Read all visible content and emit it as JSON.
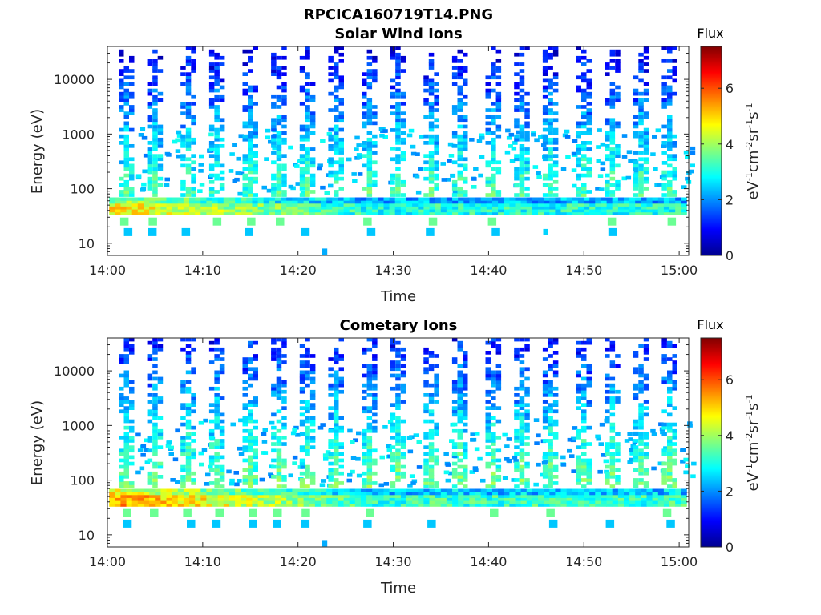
{
  "figure_title": "RPCICA160719T14.PNG",
  "chart_data": [
    {
      "type": "heatmap",
      "title": "Solar Wind Ions",
      "xlabel": "Time",
      "ylabel": "Energy (eV)",
      "x_ticks": [
        "14:00",
        "14:10",
        "14:20",
        "14:30",
        "14:40",
        "14:50",
        "15:00"
      ],
      "x_range": [
        "14:00",
        "15:01"
      ],
      "y_ticks": [
        "10",
        "100",
        "1000",
        "10000"
      ],
      "y_scale": "log",
      "y_range": [
        6,
        40000
      ],
      "colorbar": {
        "label": "Flux",
        "units": "eV⁻¹cm⁻²sr⁻¹s⁻¹",
        "ticks": [
          "0",
          "2",
          "4",
          "6"
        ],
        "range": [
          0,
          7.5
        ],
        "colormap": "jet"
      },
      "sweep_times_min": [
        2,
        5,
        8.5,
        11.5,
        15,
        18,
        21,
        24,
        27.5,
        30.5,
        34,
        37,
        40.5,
        43.5,
        46.5,
        50,
        53,
        56,
        59
      ],
      "background_band": {
        "energy_min": 35,
        "energy_max": 70,
        "flux_early": 4.8,
        "flux_late": 3.0
      },
      "low_energy_blocks_eV": [
        25,
        16
      ],
      "isolated_points": [
        {
          "time_min": 22.8,
          "energy": 7,
          "flux": 2.2
        },
        {
          "time_min": 46,
          "energy": 16,
          "flux": 2.5
        }
      ]
    },
    {
      "type": "heatmap",
      "title": "Cometary Ions",
      "xlabel": "Time",
      "ylabel": "Energy (eV)",
      "x_ticks": [
        "14:00",
        "14:10",
        "14:20",
        "14:30",
        "14:40",
        "14:50",
        "15:00"
      ],
      "x_range": [
        "14:00",
        "15:01"
      ],
      "y_ticks": [
        "10",
        "100",
        "1000",
        "10000"
      ],
      "y_scale": "log",
      "y_range": [
        6,
        40000
      ],
      "colorbar": {
        "label": "Flux",
        "units": "eV⁻¹cm⁻²sr⁻¹s⁻¹",
        "ticks": [
          "0",
          "2",
          "4",
          "6"
        ],
        "range": [
          0,
          7.5
        ],
        "colormap": "jet"
      },
      "sweep_times_min": [
        2,
        5,
        8.5,
        11.5,
        15,
        18,
        21,
        24,
        27.5,
        30.5,
        34,
        37,
        40.5,
        43.5,
        46.5,
        50,
        53,
        56,
        59
      ],
      "background_band": {
        "energy_min": 35,
        "energy_max": 70,
        "flux_early": 5.5,
        "flux_late": 3.2
      },
      "low_energy_blocks_eV": [
        25,
        16
      ],
      "isolated_points": [
        {
          "time_min": 22.8,
          "energy": 7,
          "flux": 2.2
        }
      ]
    }
  ]
}
